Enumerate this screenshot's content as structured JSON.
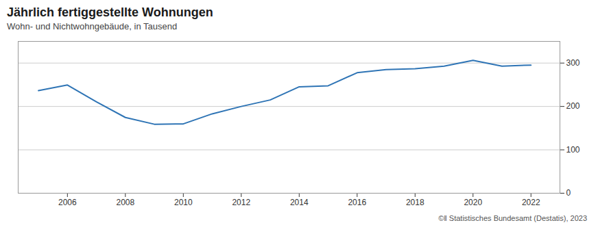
{
  "chart_data": {
    "type": "line",
    "title": "Jährlich fertiggestellte Wohnungen",
    "subtitle": "Wohn- und Nichtwohngebäude, in Tausend",
    "source": "©‖ Statistisches Bundesamt (Destatis), 2023",
    "x": [
      2005,
      2006,
      2007,
      2008,
      2009,
      2010,
      2011,
      2012,
      2013,
      2014,
      2015,
      2016,
      2017,
      2018,
      2019,
      2020,
      2021,
      2022
    ],
    "values": [
      236.4,
      249.4,
      210.7,
      174.6,
      159.0,
      159.8,
      183.0,
      200.0,
      215.0,
      245.3,
      247.7,
      277.7,
      284.9,
      287.0,
      293.0,
      306.4,
      293.0,
      295.3
    ],
    "color": "#2e74b5",
    "xlim": [
      2004.3,
      2023.0
    ],
    "xticks": [
      2006,
      2008,
      2010,
      2012,
      2014,
      2016,
      2018,
      2020,
      2022
    ],
    "ylim": [
      0,
      350
    ],
    "yticks": [
      0,
      100,
      200,
      300
    ],
    "grid": true
  }
}
